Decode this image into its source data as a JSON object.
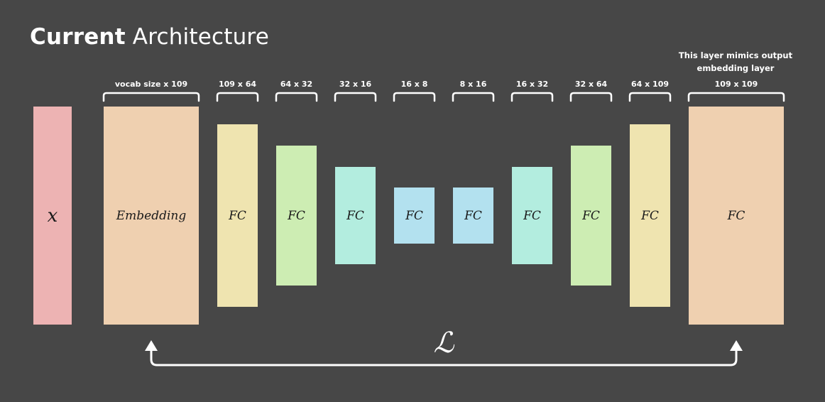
{
  "title": {
    "bold": "Current",
    "regular": "Architecture"
  },
  "note": "This layer mimics output embedding layer",
  "loss_symbol": "ℒ",
  "layers": [
    {
      "id": "input",
      "label": "x",
      "dims": "",
      "color": "#edb3b3"
    },
    {
      "id": "embedding",
      "label": "Embedding",
      "dims": "vocab size x 109",
      "color": "#efd0b0"
    },
    {
      "id": "fc1",
      "label": "FC",
      "dims": "109 x 64",
      "color": "#efe4b0"
    },
    {
      "id": "fc2",
      "label": "FC",
      "dims": "64 x 32",
      "color": "#cdedb3"
    },
    {
      "id": "fc3",
      "label": "FC",
      "dims": "32 x 16",
      "color": "#b3eddf"
    },
    {
      "id": "fc4",
      "label": "FC",
      "dims": "16 x 8",
      "color": "#b3e1ef"
    },
    {
      "id": "fc5",
      "label": "FC",
      "dims": "8 x 16",
      "color": "#b3e1ef"
    },
    {
      "id": "fc6",
      "label": "FC",
      "dims": "16 x 32",
      "color": "#b3eddf"
    },
    {
      "id": "fc7",
      "label": "FC",
      "dims": "32 x 64",
      "color": "#cdedb3"
    },
    {
      "id": "fc8",
      "label": "FC",
      "dims": "64 x 109",
      "color": "#efe4b0"
    },
    {
      "id": "output",
      "label": "FC",
      "dims": "109 x 109",
      "color": "#efd0b0"
    }
  ]
}
